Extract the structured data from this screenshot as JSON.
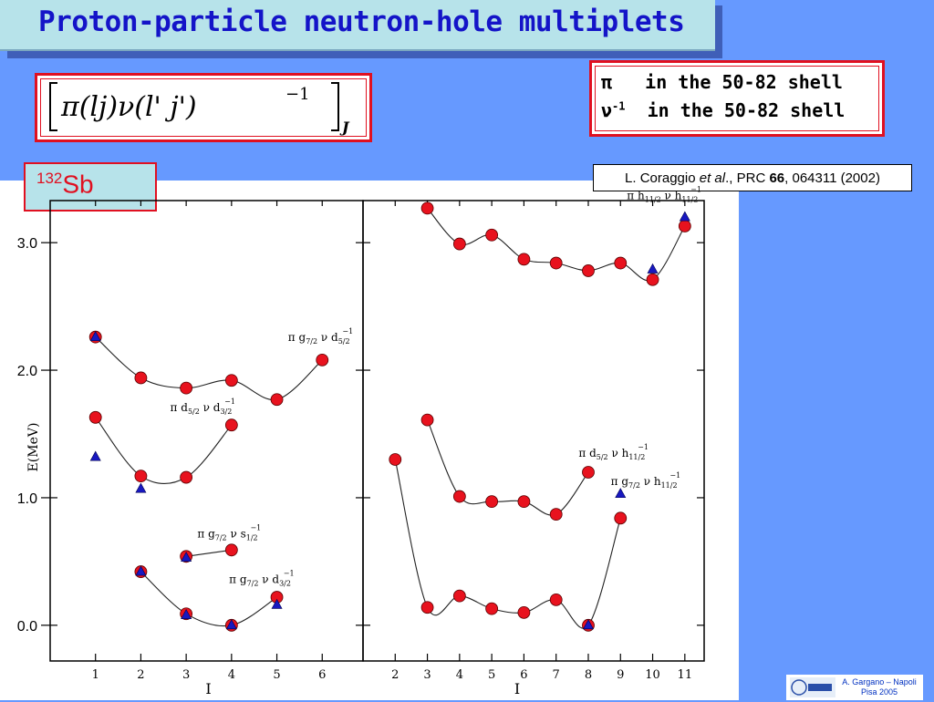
{
  "title": "Proton-particle neutron-hole multiplets",
  "formula": {
    "sub_J": "J"
  },
  "shells": {
    "line1_symbol": "π",
    "line1_text": "in the 50-82 shell",
    "line2_symbol": "ν",
    "line2_sup": "-1",
    "line2_text": "in the 50-82 shell"
  },
  "nucleus": {
    "mass": "132",
    "element": "Sb"
  },
  "reference": {
    "authors": "L. Coraggio",
    "etal": "et al",
    "journal": "PRC",
    "volume": "66",
    "rest": ", 064311 (2002)"
  },
  "footer": {
    "line1": "A. Gargano – Napoli",
    "line2": "Pisa 2005"
  },
  "colors": {
    "circle": "#e8121e",
    "triangle": "#1818c0",
    "background": "#6699ff",
    "title_bg": "#b7e3ea",
    "accent_red": "#e01020"
  },
  "chart_data": [
    {
      "type": "scatter",
      "panel": "left",
      "xlabel": "I",
      "ylabel": "E(MeV)",
      "x_ticks": [
        1,
        2,
        3,
        4,
        5,
        6
      ],
      "y_ticks": [
        0.0,
        1.0,
        2.0,
        3.0
      ],
      "y_tick_labels": [
        "0.0",
        "1.0",
        "2.0",
        "3.0"
      ],
      "xlim": [
        0.0,
        6.9
      ],
      "ylim": [
        -0.28,
        3.33
      ],
      "series": [
        {
          "label": "π g7/2 ν d5/2",
          "label_at": [
            5.85,
            2.23
          ],
          "circles": [
            [
              1,
              2.26
            ],
            [
              2,
              1.94
            ],
            [
              3,
              1.86
            ],
            [
              4,
              1.92
            ],
            [
              5,
              1.77
            ],
            [
              6,
              2.08
            ]
          ],
          "triangles": [
            [
              1,
              2.26
            ]
          ]
        },
        {
          "label": "π d5/2 ν d3/2",
          "label_at": [
            3.25,
            1.68
          ],
          "circles": [
            [
              1,
              1.63
            ],
            [
              2,
              1.17
            ],
            [
              3,
              1.16
            ],
            [
              4,
              1.57
            ]
          ],
          "triangles": [
            [
              1,
              1.32
            ],
            [
              2,
              1.07
            ]
          ]
        },
        {
          "label": "π g7/2 ν s1/2",
          "label_at": [
            3.85,
            0.69
          ],
          "circles": [
            [
              3,
              0.54
            ],
            [
              4,
              0.59
            ]
          ],
          "triangles": [
            [
              3,
              0.53
            ]
          ]
        },
        {
          "label": "π g7/2 ν d3/2",
          "label_at": [
            4.55,
            0.33
          ],
          "circles": [
            [
              2,
              0.42
            ],
            [
              3,
              0.09
            ],
            [
              4,
              0.0
            ],
            [
              5,
              0.22
            ]
          ],
          "triangles": [
            [
              2,
              0.42
            ],
            [
              3,
              0.08
            ],
            [
              4,
              0.0
            ],
            [
              5,
              0.16
            ]
          ]
        }
      ]
    },
    {
      "type": "scatter",
      "panel": "right",
      "xlabel": "I",
      "x_ticks": [
        2,
        3,
        4,
        5,
        6,
        7,
        8,
        9,
        10,
        11
      ],
      "xlim": [
        1.0,
        11.6
      ],
      "ylim": [
        -0.28,
        3.33
      ],
      "series": [
        {
          "label": "π h11/2 ν h11/2",
          "label_at": [
            10.05,
            3.34
          ],
          "circles": [
            [
              3,
              3.27
            ],
            [
              4,
              2.99
            ],
            [
              5,
              3.06
            ],
            [
              6,
              2.87
            ],
            [
              7,
              2.84
            ],
            [
              8,
              2.78
            ],
            [
              9,
              2.84
            ],
            [
              10,
              2.71
            ],
            [
              11,
              3.13
            ]
          ],
          "triangles": [
            [
              10,
              2.79
            ],
            [
              11,
              3.2
            ]
          ]
        },
        {
          "label": "π d5/2 ν h11/2",
          "label_at": [
            8.55,
            1.32
          ],
          "circles": [
            [
              3,
              1.61
            ],
            [
              4,
              1.01
            ],
            [
              5,
              0.97
            ],
            [
              6,
              0.97
            ],
            [
              7,
              0.87
            ],
            [
              8,
              1.2
            ]
          ],
          "triangles": []
        },
        {
          "label": "π g7/2 ν h11/2",
          "label_at": [
            9.55,
            1.1
          ],
          "circles": [
            [
              2,
              1.3
            ],
            [
              3,
              0.14
            ],
            [
              4,
              0.23
            ],
            [
              5,
              0.13
            ],
            [
              6,
              0.1
            ],
            [
              7,
              0.2
            ],
            [
              8,
              0.0
            ],
            [
              9,
              0.84
            ]
          ],
          "triangles": [
            [
              8,
              0.0
            ],
            [
              9,
              1.03
            ]
          ]
        }
      ]
    }
  ]
}
